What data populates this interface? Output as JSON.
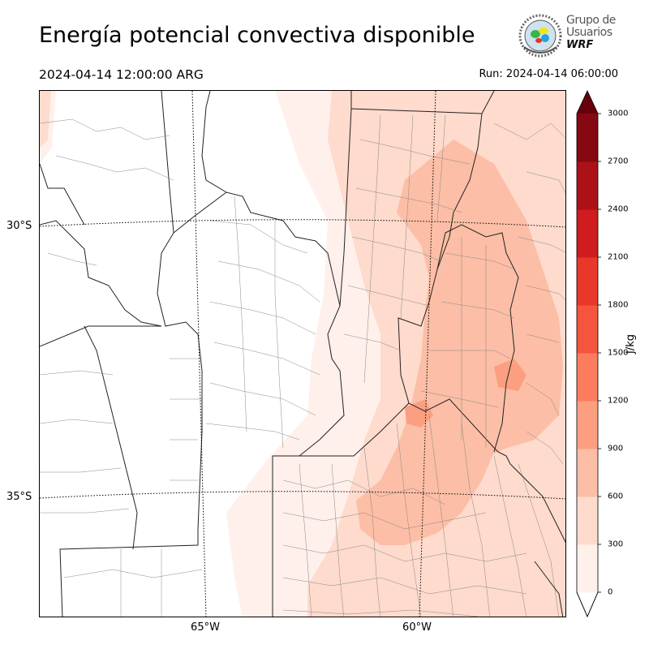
{
  "header": {
    "title": "Energía potencial convectiva disponible",
    "valid_time": "2024-04-14 12:00:00 ARG",
    "run_time": "Run: 2024-04-14 06:00:00"
  },
  "logo": {
    "line1": "Grupo de",
    "line2": "Usuarios",
    "line3": "WRF"
  },
  "map": {
    "latitude_labels": [
      "30°S",
      "35°S"
    ],
    "longitude_labels": [
      "65°W",
      "60°W"
    ],
    "field": "CAPE"
  },
  "colorbar": {
    "unit": "J/kg",
    "ticks": [
      "0",
      "300",
      "600",
      "900",
      "1200",
      "1500",
      "1800",
      "2100",
      "2400",
      "2700",
      "3000"
    ],
    "colors": [
      "#fff0eb",
      "#fedbcc",
      "#fcbea6",
      "#fc9f81",
      "#fb7d5d",
      "#f5553c",
      "#e9372a",
      "#cf1c1e",
      "#ad1118",
      "#860811",
      "#67000d"
    ],
    "extend": "max"
  }
}
